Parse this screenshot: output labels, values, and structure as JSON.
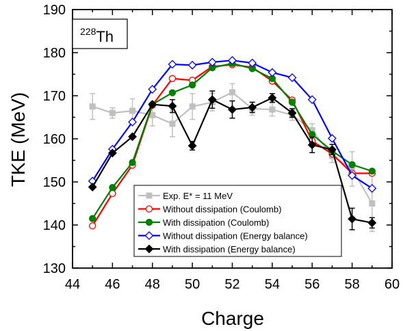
{
  "chart_data": {
    "type": "line",
    "xlabel": "Charge",
    "ylabel": "TKE (MeV)",
    "xlim": [
      44,
      60
    ],
    "ylim": [
      130,
      190
    ],
    "xticks": [
      44,
      46,
      48,
      50,
      52,
      54,
      56,
      58,
      60
    ],
    "yticks": [
      130,
      140,
      150,
      160,
      170,
      180,
      190
    ],
    "annotation": {
      "mass": "228",
      "element": "Th"
    },
    "legend_position": "bottom-center",
    "series": [
      {
        "name": "Exp. E* = 11 MeV",
        "color": "#c0c0c0",
        "marker": "square-filled",
        "x": [
          45,
          46,
          47,
          48,
          49,
          50,
          51,
          52,
          53,
          54,
          55,
          56,
          57,
          58,
          59
        ],
        "y": [
          167.5,
          166.0,
          166.5,
          165.5,
          163.5,
          167.5,
          168.5,
          170.8,
          167.0,
          166.8,
          165.5,
          162.0,
          156.0,
          153.0,
          145.0
        ],
        "err": [
          3.0,
          1.2,
          2.8,
          2.5,
          3.0,
          3.0,
          2.0,
          2.0,
          1.5,
          1.5,
          1.2,
          1.5,
          1.5,
          4.0,
          6.5
        ]
      },
      {
        "name": "Without dissipation (Coulomb)",
        "color": "#ff0000",
        "marker": "circle-open",
        "x": [
          45,
          46,
          47,
          48,
          49,
          50,
          51,
          52,
          53,
          54,
          55,
          56,
          57,
          58,
          59
        ],
        "y": [
          139.8,
          147.3,
          153.9,
          167.8,
          174.0,
          173.6,
          176.8,
          177.2,
          176.6,
          173.4,
          169.0,
          159.5,
          156.5,
          152.0,
          152.0
        ]
      },
      {
        "name": "With dissipation (Coulomb)",
        "color": "#008000",
        "marker": "circle-filled",
        "x": [
          45,
          46,
          47,
          48,
          49,
          50,
          51,
          52,
          53,
          54,
          55,
          56,
          57,
          58,
          59
        ],
        "y": [
          141.5,
          148.7,
          154.5,
          168.0,
          170.7,
          172.5,
          176.5,
          177.5,
          176.3,
          174.0,
          168.5,
          161.0,
          157.2,
          154.0,
          152.5
        ]
      },
      {
        "name": "Without dissipation (Energy balance)",
        "color": "#0000ff",
        "marker": "diamond-open",
        "x": [
          45,
          46,
          47,
          48,
          49,
          50,
          51,
          52,
          53,
          54,
          55,
          56,
          57,
          58,
          59
        ],
        "y": [
          150.2,
          157.6,
          163.9,
          171.5,
          177.3,
          177.1,
          177.8,
          178.2,
          177.6,
          175.4,
          174.2,
          169.1,
          160.1,
          151.5,
          148.5
        ]
      },
      {
        "name": "With dissipation (Energy balance)",
        "color": "#000000",
        "marker": "diamond-filled",
        "x": [
          45,
          46,
          47,
          48,
          49,
          50,
          51,
          52,
          53,
          54,
          55,
          56,
          57,
          58,
          59
        ],
        "y": [
          148.8,
          156.7,
          160.5,
          168.0,
          167.6,
          158.4,
          169.1,
          166.8,
          167.3,
          169.5,
          166.0,
          158.6,
          157.5,
          141.4,
          140.5
        ],
        "err": [
          0,
          0,
          0,
          0,
          1.5,
          1.0,
          2.0,
          2.0,
          1.2,
          1.0,
          1.0,
          1.8,
          1.2,
          2.5,
          1.2
        ]
      }
    ]
  }
}
